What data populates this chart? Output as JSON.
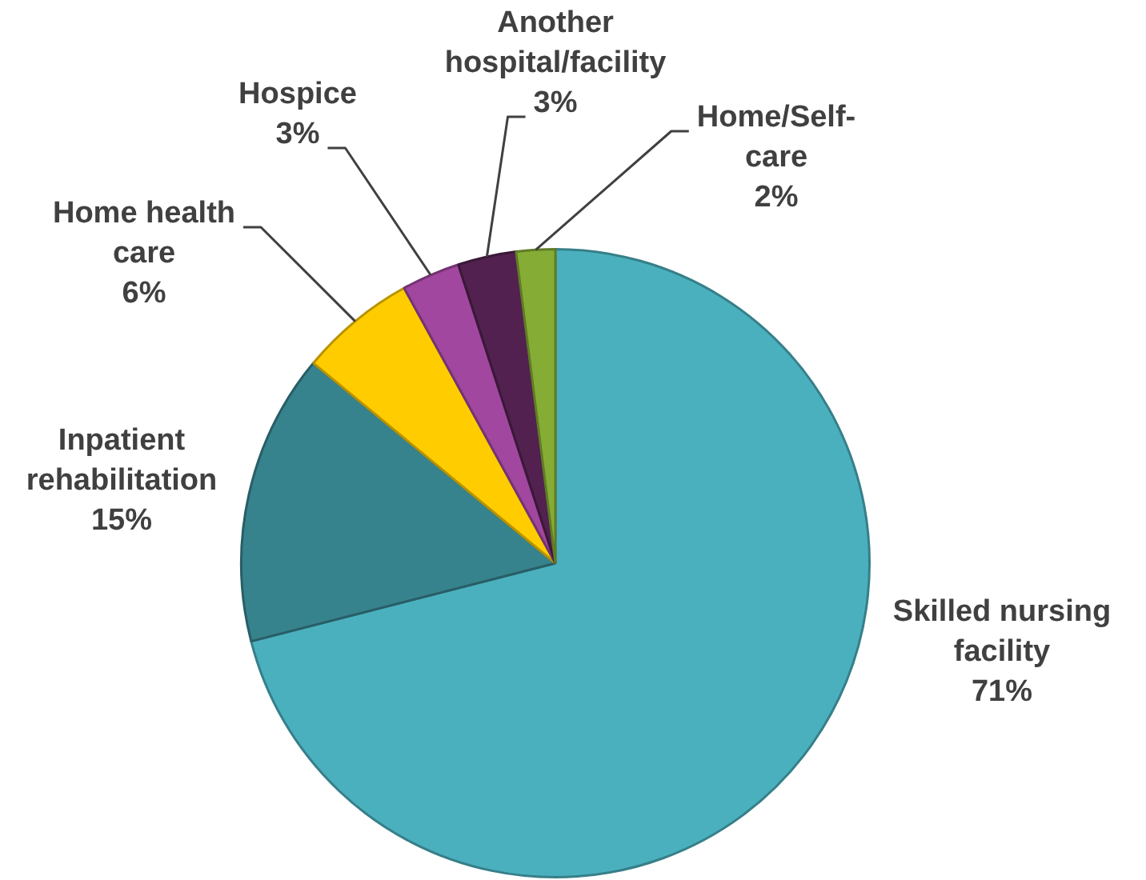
{
  "chart_data": {
    "type": "pie",
    "categories": [
      "Skilled nursing facility",
      "Inpatient rehabilitation",
      "Home health care",
      "Hospice",
      "Another hospital/facility",
      "Home/Self-care"
    ],
    "values": [
      71,
      15,
      6,
      3,
      3,
      2
    ],
    "colors": [
      "#4bb0be",
      "#37838d",
      "#ffcc00",
      "#a1479f",
      "#52214f",
      "#85ac35"
    ],
    "value_labels": [
      "71%",
      "15%",
      "6%",
      "3%",
      "3%",
      "2%"
    ],
    "legend": false
  }
}
